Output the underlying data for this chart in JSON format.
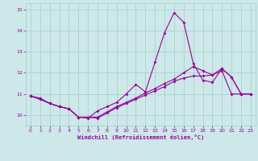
{
  "x": [
    0,
    1,
    2,
    3,
    4,
    5,
    6,
    7,
    8,
    9,
    10,
    11,
    12,
    13,
    14,
    15,
    16,
    17,
    18,
    19,
    20,
    21,
    22,
    23
  ],
  "line1": [
    10.9,
    10.8,
    10.55,
    10.4,
    10.3,
    9.9,
    9.85,
    10.2,
    10.4,
    10.6,
    11.0,
    11.45,
    11.1,
    12.5,
    13.9,
    14.85,
    14.4,
    12.45,
    11.65,
    11.55,
    12.2,
    11.8,
    11.0,
    11.0
  ],
  "line2": [
    10.9,
    10.75,
    10.55,
    10.4,
    10.3,
    9.9,
    9.9,
    9.85,
    10.1,
    10.35,
    10.55,
    10.75,
    10.95,
    11.15,
    11.35,
    11.6,
    11.75,
    11.85,
    11.85,
    11.9,
    12.1,
    11.0,
    11.0,
    11.0
  ],
  "line3": [
    10.9,
    10.75,
    10.55,
    10.4,
    10.3,
    9.9,
    9.9,
    9.9,
    10.15,
    10.4,
    10.6,
    10.8,
    11.05,
    11.25,
    11.5,
    11.7,
    12.0,
    12.3,
    12.1,
    11.9,
    12.2,
    11.8,
    11.0,
    11.0
  ],
  "line_color": "#990099",
  "bg_color": "#cce8e8",
  "grid_color": "#a8cccc",
  "ylim": [
    9.5,
    15.3
  ],
  "yticks": [
    10,
    11,
    12,
    13,
    14,
    15
  ],
  "xticks": [
    0,
    1,
    2,
    3,
    4,
    5,
    6,
    7,
    8,
    9,
    10,
    11,
    12,
    13,
    14,
    15,
    16,
    17,
    18,
    19,
    20,
    21,
    22,
    23
  ],
  "xlabel": "Windchill (Refroidissement éolien,°C)",
  "markersize": 2.0,
  "linewidth": 0.8
}
